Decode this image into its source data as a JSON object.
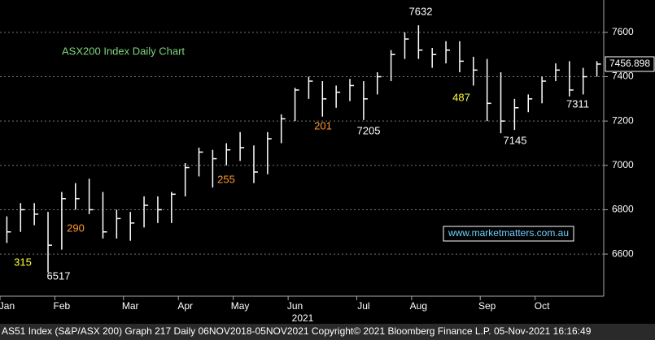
{
  "chart_data": {
    "type": "ohlc",
    "title": "ASX200 Index Daily Chart",
    "categories": [
      "Jan",
      null,
      null,
      null,
      "Feb",
      null,
      null,
      null,
      null,
      "Mar",
      null,
      null,
      null,
      "Apr",
      null,
      null,
      null,
      "May",
      null,
      null,
      null,
      "Jun",
      null,
      null,
      null,
      null,
      "Jul",
      null,
      null,
      null,
      "Aug",
      null,
      null,
      null,
      null,
      "Sep",
      null,
      null,
      null,
      "Oct",
      null,
      null,
      null,
      null
    ],
    "year_label": "2021",
    "high": [
      6770,
      6830,
      6830,
      6790,
      6880,
      6920,
      6940,
      6880,
      6800,
      6790,
      6860,
      6860,
      6880,
      7010,
      7080,
      7070,
      7100,
      7150,
      7090,
      7150,
      7230,
      7350,
      7400,
      7380,
      7360,
      7390,
      7380,
      7420,
      7520,
      7600,
      7632,
      7530,
      7560,
      7560,
      7490,
      7480,
      7420,
      7300,
      7320,
      7400,
      7460,
      7470,
      7440,
      7470
    ],
    "low": [
      6650,
      6700,
      6730,
      6517,
      6620,
      6800,
      6780,
      6670,
      6670,
      6660,
      6720,
      6740,
      6740,
      6860,
      6950,
      6900,
      7000,
      7020,
      6920,
      6960,
      7100,
      7200,
      7300,
      7220,
      7260,
      7290,
      7205,
      7320,
      7380,
      7480,
      7480,
      7440,
      7460,
      7420,
      7360,
      7200,
      7145,
      7160,
      7240,
      7280,
      7380,
      7311,
      7320,
      7400
    ],
    "close": [
      6700,
      6800,
      6780,
      6640,
      6850,
      6850,
      6800,
      6700,
      6760,
      6740,
      6820,
      6800,
      6870,
      6990,
      7060,
      7030,
      7070,
      7080,
      6970,
      7120,
      7210,
      7340,
      7380,
      7300,
      7330,
      7360,
      7300,
      7400,
      7500,
      7570,
      7520,
      7500,
      7520,
      7470,
      7430,
      7280,
      7200,
      7260,
      7300,
      7380,
      7430,
      7340,
      7400,
      7457
    ],
    "color": "#ffffff",
    "last_price": 7456.898,
    "ylim": [
      6410,
      7746
    ],
    "yticks": [
      6600,
      6800,
      7000,
      7200,
      7400,
      7600
    ],
    "grid": true,
    "annotations": [
      "7632",
      "6517",
      "7205",
      "7145",
      "7311",
      "315",
      "290",
      "255",
      "201",
      "487"
    ],
    "watermark": "www.marketmatters.com.au",
    "footer": "AS51 Index (S&P/ASX 200) Graph 217  Daily 06NOV2018-05NOV2021  Copyright© 2021 Bloomberg Finance L.P.  05-Nov-2021 16:16:49"
  }
}
